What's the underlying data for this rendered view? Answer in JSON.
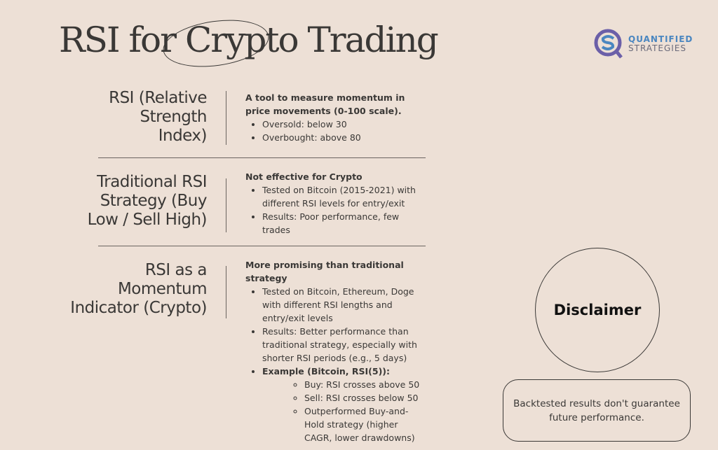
{
  "title": "RSI for Crypto Trading",
  "logo": {
    "line1": "QUANTIFIED",
    "line2": "STRATEGIES",
    "colors": {
      "ring": "#6b5fa8",
      "accent": "#4a86c0"
    }
  },
  "sections": [
    {
      "label": "RSI (Relative Strength Index)",
      "heading": "A tool to measure momentum in price movements (0-100 scale).",
      "bullets": [
        "Oversold: below 30",
        "Overbought: above 80"
      ]
    },
    {
      "label": "Traditional RSI Strategy (Buy Low / Sell High)",
      "heading": "Not effective for Crypto",
      "bullets": [
        "Tested on Bitcoin (2015-2021) with different RSI levels for entry/exit",
        "Results: Poor performance, few trades"
      ]
    },
    {
      "label": "RSI as a Momentum Indicator (Crypto)",
      "heading": "More promising than traditional strategy",
      "bullets": [
        "Tested on Bitcoin, Ethereum, Doge with different RSI lengths and entry/exit levels",
        "Results: Better performance than traditional strategy, especially with shorter RSI periods (e.g., 5 days)"
      ],
      "example": {
        "label": "Example (Bitcoin, RSI(5)):",
        "bullets": [
          "Buy: RSI crosses above 50",
          "Sell: RSI crosses below 50",
          "Outperformed Buy-and-Hold strategy (higher CAGR, lower drawdowns)"
        ]
      }
    }
  ],
  "disclaimer": {
    "title": "Disclaimer",
    "text": "Backtested results don't guarantee future performance."
  }
}
